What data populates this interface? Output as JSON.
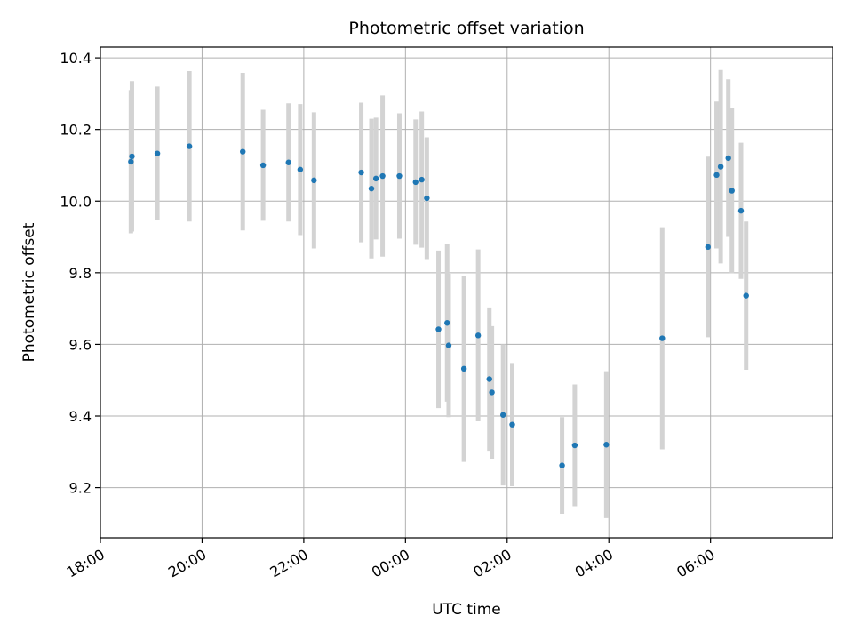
{
  "chart_data": {
    "type": "scatter",
    "title": "Photometric offset variation",
    "xlabel": "UTC time",
    "ylabel": "Photometric offset",
    "x_unit": "hours since 18:00 UTC",
    "xlim": [
      0,
      14.4
    ],
    "ylim": [
      9.06,
      10.43
    ],
    "xticks": [
      0,
      2,
      4,
      6,
      8,
      10,
      12
    ],
    "xtick_labels": [
      "18:00",
      "20:00",
      "22:00",
      "00:00",
      "02:00",
      "04:00",
      "06:00"
    ],
    "yticks": [
      9.2,
      9.4,
      9.6,
      9.8,
      10.0,
      10.2,
      10.4
    ],
    "ytick_labels": [
      "9.2",
      "9.4",
      "9.6",
      "9.8",
      "10.0",
      "10.2",
      "10.4"
    ],
    "grid": true,
    "point_color": "#1f77b4",
    "errorbar_color": "#d3d3d3",
    "points": [
      {
        "x": 0.6,
        "y": 10.11,
        "err": 0.2
      },
      {
        "x": 0.62,
        "y": 10.125,
        "err": 0.21
      },
      {
        "x": 1.12,
        "y": 10.133,
        "err": 0.187
      },
      {
        "x": 1.75,
        "y": 10.153,
        "err": 0.21
      },
      {
        "x": 2.8,
        "y": 10.138,
        "err": 0.22
      },
      {
        "x": 3.2,
        "y": 10.1,
        "err": 0.155
      },
      {
        "x": 3.7,
        "y": 10.108,
        "err": 0.165
      },
      {
        "x": 3.93,
        "y": 10.088,
        "err": 0.183
      },
      {
        "x": 4.2,
        "y": 10.058,
        "err": 0.19
      },
      {
        "x": 5.13,
        "y": 10.08,
        "err": 0.195
      },
      {
        "x": 5.33,
        "y": 10.035,
        "err": 0.195
      },
      {
        "x": 5.42,
        "y": 10.063,
        "err": 0.17
      },
      {
        "x": 5.55,
        "y": 10.07,
        "err": 0.225
      },
      {
        "x": 5.88,
        "y": 10.07,
        "err": 0.175
      },
      {
        "x": 6.2,
        "y": 10.053,
        "err": 0.175
      },
      {
        "x": 6.32,
        "y": 10.06,
        "err": 0.19
      },
      {
        "x": 6.42,
        "y": 10.008,
        "err": 0.17
      },
      {
        "x": 6.65,
        "y": 9.642,
        "err": 0.22
      },
      {
        "x": 6.82,
        "y": 9.66,
        "err": 0.22
      },
      {
        "x": 6.85,
        "y": 9.597,
        "err": 0.2
      },
      {
        "x": 7.15,
        "y": 9.532,
        "err": 0.26
      },
      {
        "x": 7.43,
        "y": 9.625,
        "err": 0.24
      },
      {
        "x": 7.65,
        "y": 9.503,
        "err": 0.2
      },
      {
        "x": 7.7,
        "y": 9.466,
        "err": 0.185
      },
      {
        "x": 7.92,
        "y": 9.403,
        "err": 0.197
      },
      {
        "x": 8.1,
        "y": 9.376,
        "err": 0.172
      },
      {
        "x": 9.08,
        "y": 9.262,
        "err": 0.135
      },
      {
        "x": 9.33,
        "y": 9.318,
        "err": 0.17
      },
      {
        "x": 9.95,
        "y": 9.32,
        "err": 0.205
      },
      {
        "x": 11.05,
        "y": 9.617,
        "err": 0.31
      },
      {
        "x": 11.95,
        "y": 9.872,
        "err": 0.252
      },
      {
        "x": 12.12,
        "y": 10.073,
        "err": 0.205
      },
      {
        "x": 12.2,
        "y": 10.096,
        "err": 0.27
      },
      {
        "x": 12.35,
        "y": 10.12,
        "err": 0.22
      },
      {
        "x": 12.42,
        "y": 10.029,
        "err": 0.23
      },
      {
        "x": 12.6,
        "y": 9.973,
        "err": 0.19
      },
      {
        "x": 12.7,
        "y": 9.736,
        "err": 0.207
      }
    ]
  }
}
